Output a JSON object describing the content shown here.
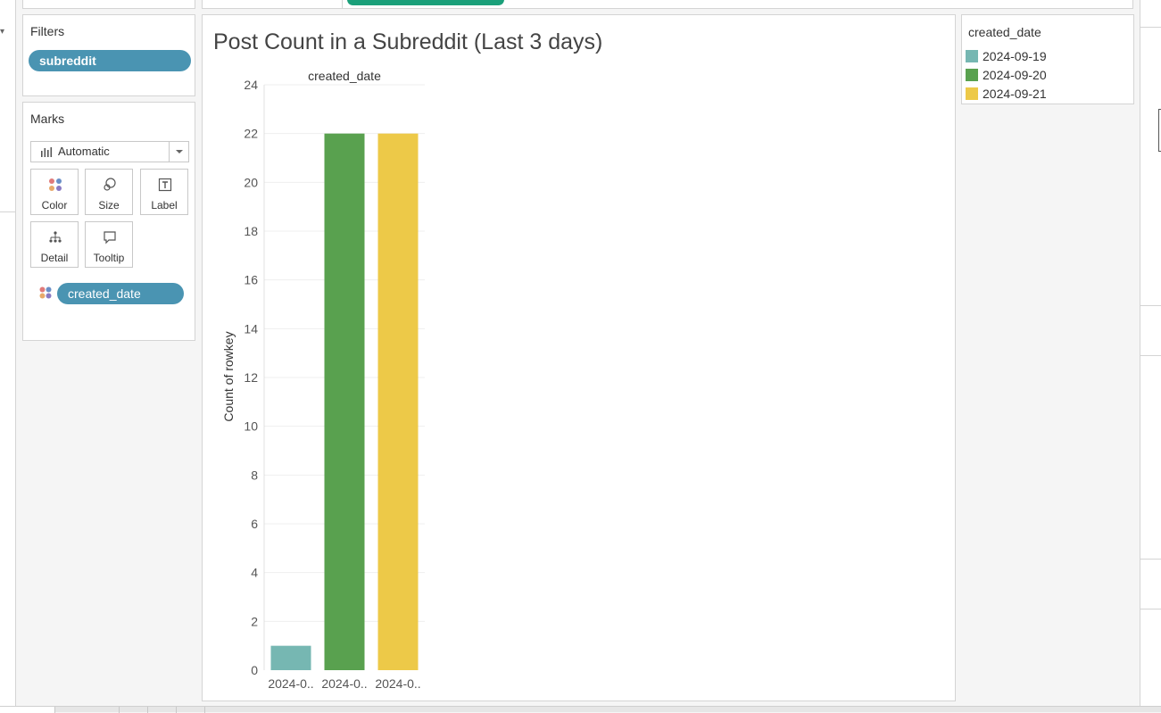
{
  "filters": {
    "title": "Filters",
    "pills": [
      "subreddit"
    ]
  },
  "marks": {
    "title": "Marks",
    "type_select": "Automatic",
    "buttons": [
      {
        "label": "Color",
        "icon": "color-icon"
      },
      {
        "label": "Size",
        "icon": "size-icon"
      },
      {
        "label": "Label",
        "icon": "label-icon"
      },
      {
        "label": "Detail",
        "icon": "detail-icon"
      },
      {
        "label": "Tooltip",
        "icon": "tooltip-icon"
      }
    ],
    "color_pill": "created_date"
  },
  "legend": {
    "title": "created_date",
    "items": [
      {
        "label": "2024-09-19",
        "color": "#76b7b2"
      },
      {
        "label": "2024-09-20",
        "color": "#59a14f"
      },
      {
        "label": "2024-09-21",
        "color": "#edc948"
      }
    ]
  },
  "chart_data": {
    "type": "bar",
    "title": "Post Count in a Subreddit (Last 3 days)",
    "column_header": "created_date",
    "ylabel": "Count of rowkey",
    "categories": [
      "2024-0..",
      "2024-0..",
      "2024-0.."
    ],
    "values": [
      1,
      22,
      22
    ],
    "colors": [
      "#76b7b2",
      "#59a14f",
      "#edc948"
    ],
    "ylim": [
      0,
      24
    ],
    "yticks": [
      0,
      2,
      4,
      6,
      8,
      10,
      12,
      14,
      16,
      18,
      20,
      22,
      24
    ],
    "grid": true
  }
}
